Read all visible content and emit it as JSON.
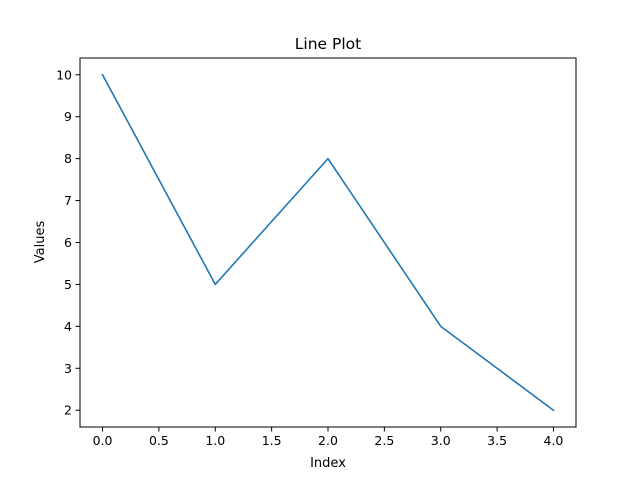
{
  "chart_data": {
    "type": "line",
    "title": "Line Plot",
    "xlabel": "Index",
    "ylabel": "Values",
    "x": [
      0,
      1,
      2,
      3,
      4
    ],
    "series": [
      {
        "values": [
          10,
          5,
          8,
          4,
          2
        ],
        "color": "#1f77b4"
      }
    ],
    "xlim": [
      -0.2,
      4.2
    ],
    "ylim": [
      1.6,
      10.4
    ],
    "xticks": [
      0,
      0.5,
      1,
      1.5,
      2,
      2.5,
      3,
      3.5,
      4
    ],
    "xtick_labels": [
      "0.0",
      "0.5",
      "1.0",
      "1.5",
      "2.0",
      "2.5",
      "3.0",
      "3.5",
      "4.0"
    ],
    "yticks": [
      2,
      3,
      4,
      5,
      6,
      7,
      8,
      9,
      10
    ],
    "ytick_labels": [
      "2",
      "3",
      "4",
      "5",
      "6",
      "7",
      "8",
      "9",
      "10"
    ],
    "grid": false,
    "legend": "none"
  }
}
